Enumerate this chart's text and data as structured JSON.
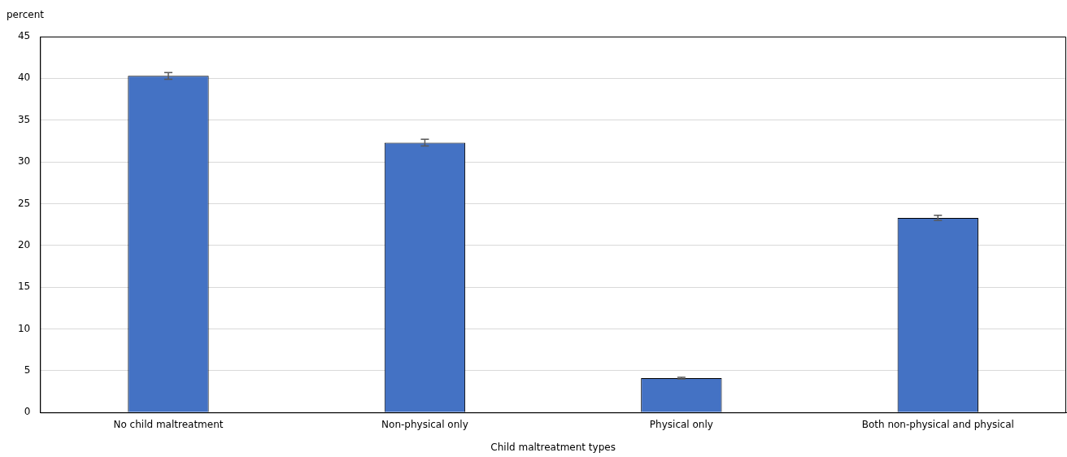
{
  "chart_data": {
    "type": "bar",
    "ylabel": "percent",
    "xlabel": "Child maltreatment types",
    "categories": [
      "No child maltreatment",
      "Non-physical only",
      "Physical only",
      "Both non-physical and physical"
    ],
    "values": [
      40.3,
      32.3,
      4.1,
      23.3
    ],
    "errors": [
      0.4,
      0.4,
      0.1,
      0.3
    ],
    "color": "#4472c4",
    "ylim": [
      0,
      45
    ],
    "yticks": [
      0,
      5,
      10,
      15,
      20,
      25,
      30,
      35,
      40,
      45
    ],
    "grid": "y",
    "legend": false
  }
}
